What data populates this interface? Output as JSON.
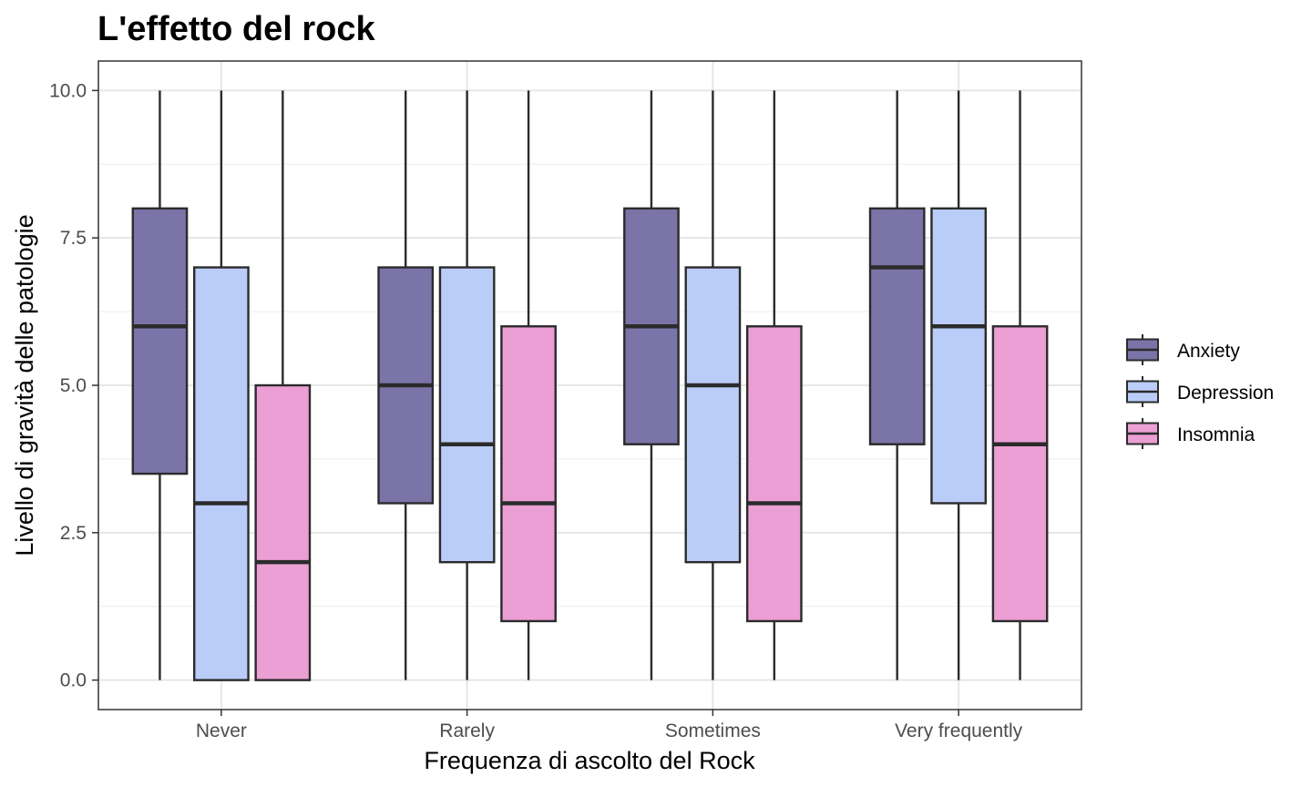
{
  "chart_data": {
    "type": "boxplot",
    "title": "L'effetto del rock",
    "xlabel": "Frequenza di ascolto del Rock",
    "ylabel": "Livello di gravità delle patologie",
    "categories": [
      "Never",
      "Rarely",
      "Sometimes",
      "Very frequently"
    ],
    "yticks": [
      "0.0",
      "2.5",
      "5.0",
      "7.5",
      "10.0"
    ],
    "ylim": [
      -0.5,
      10.5
    ],
    "grid": true,
    "legend_position": "right",
    "series": [
      {
        "name": "Anxiety",
        "color": "#7b74a8",
        "boxes": [
          {
            "min": 0,
            "q1": 3.5,
            "median": 6,
            "q3": 8,
            "max": 10
          },
          {
            "min": 0,
            "q1": 3,
            "median": 5,
            "q3": 7,
            "max": 10
          },
          {
            "min": 0,
            "q1": 4,
            "median": 6,
            "q3": 8,
            "max": 10
          },
          {
            "min": 0,
            "q1": 4,
            "median": 7,
            "q3": 8,
            "max": 10
          }
        ]
      },
      {
        "name": "Depression",
        "color": "#bacdf8",
        "boxes": [
          {
            "min": 0,
            "q1": 0,
            "median": 3,
            "q3": 7,
            "max": 10
          },
          {
            "min": 0,
            "q1": 2,
            "median": 4,
            "q3": 7,
            "max": 10
          },
          {
            "min": 0,
            "q1": 2,
            "median": 5,
            "q3": 7,
            "max": 10
          },
          {
            "min": 0,
            "q1": 3,
            "median": 6,
            "q3": 8,
            "max": 10
          }
        ]
      },
      {
        "name": "Insomnia",
        "color": "#eb9fd4",
        "boxes": [
          {
            "min": 0,
            "q1": 0,
            "median": 2,
            "q3": 5,
            "max": 10
          },
          {
            "min": 0,
            "q1": 1,
            "median": 3,
            "q3": 6,
            "max": 10
          },
          {
            "min": 0,
            "q1": 1,
            "median": 3,
            "q3": 6,
            "max": 10
          },
          {
            "min": 0,
            "q1": 1,
            "median": 4,
            "q3": 6,
            "max": 10
          }
        ]
      }
    ]
  }
}
